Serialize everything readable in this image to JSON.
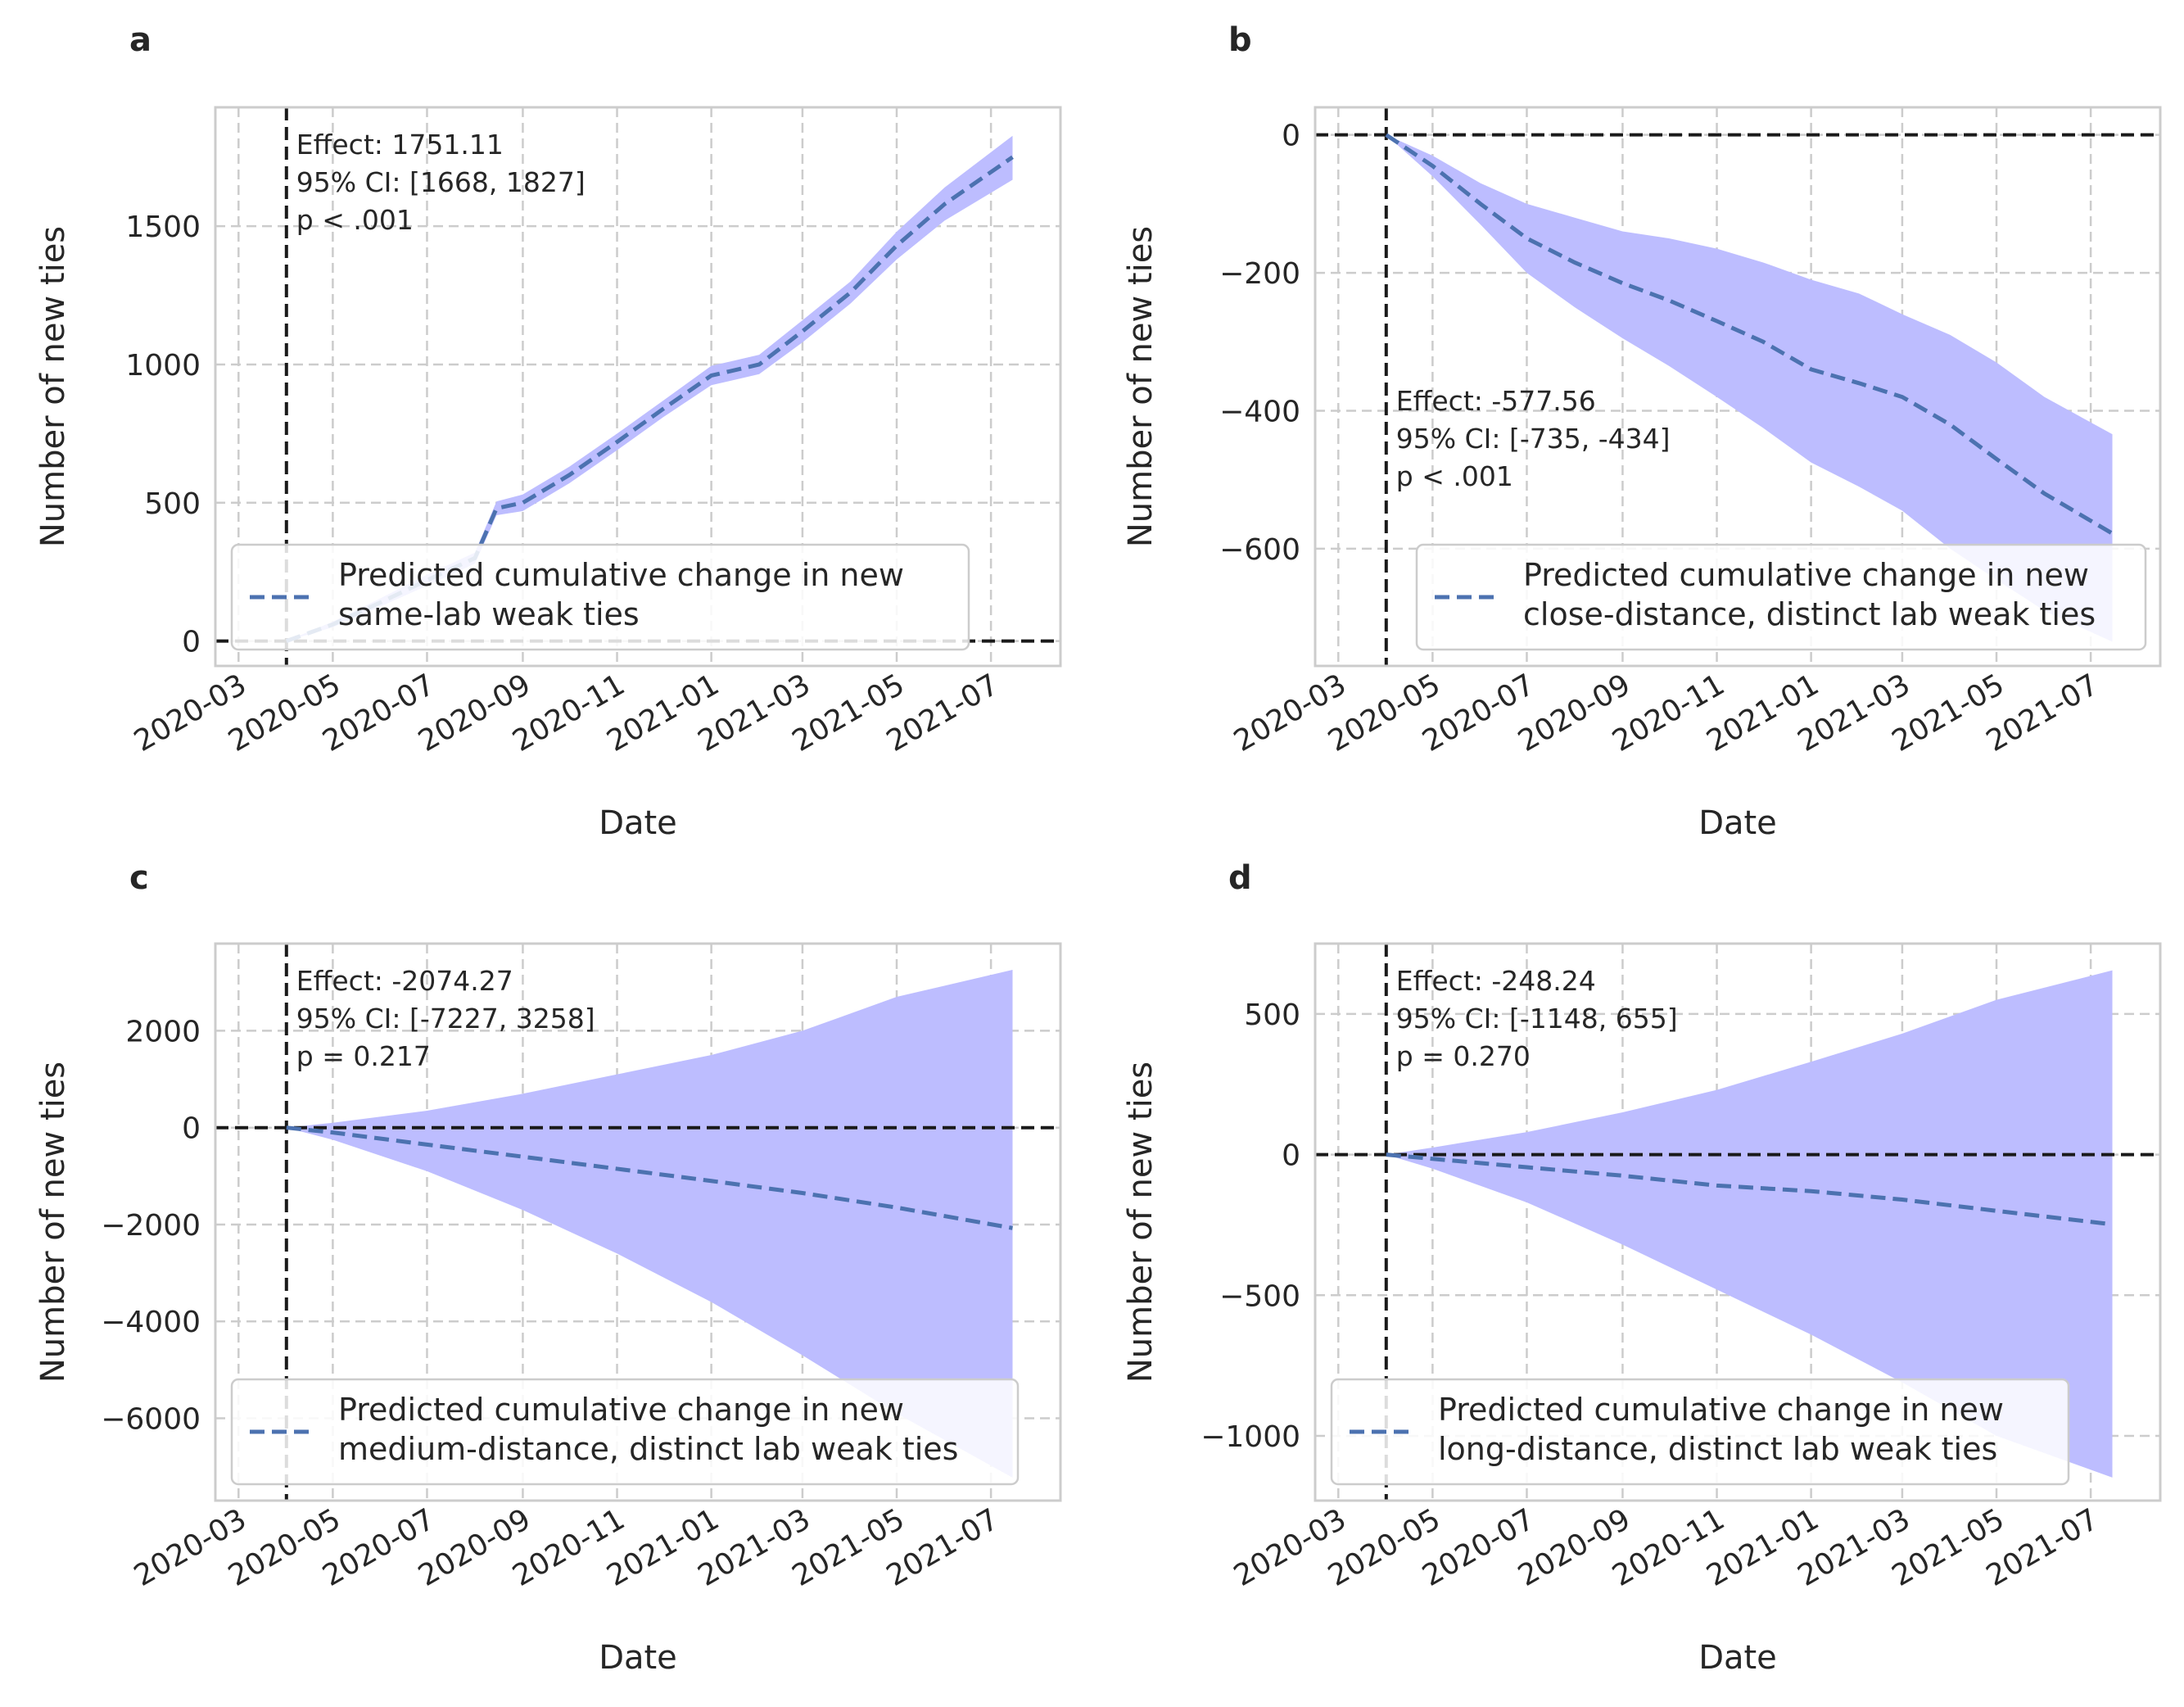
{
  "chart_data": [
    {
      "type": "line",
      "panel": "a",
      "xlabel": "Date",
      "ylabel": "Number of new ties",
      "x_ticks": [
        "2020-03",
        "2020-05",
        "2020-07",
        "2020-09",
        "2020-11",
        "2021-01",
        "2021-03",
        "2021-05",
        "2021-07"
      ],
      "y_ticks": [
        0,
        500,
        1000,
        1500
      ],
      "ylim": [
        -90,
        1930
      ],
      "intervention_date": "2020-04-01",
      "annotation": [
        "Effect: 1751.11",
        "95% CI: [1668, 1827]",
        "p < .001"
      ],
      "legend": [
        "Predicted cumulative change in new",
        "same-lab weak ties"
      ],
      "legend_position": "lower-left",
      "series": [
        {
          "name": "Predicted cumulative change",
          "style": "dashed",
          "x": [
            "2020-04-01",
            "2020-05-01",
            "2020-06-01",
            "2020-07-01",
            "2020-08-01",
            "2020-08-15",
            "2020-09-01",
            "2020-10-01",
            "2020-11-01",
            "2020-12-01",
            "2021-01-01",
            "2021-02-01",
            "2021-03-01",
            "2021-04-01",
            "2021-05-01",
            "2021-06-01",
            "2021-07-15"
          ],
          "values": [
            0,
            60,
            140,
            220,
            300,
            480,
            500,
            600,
            720,
            840,
            960,
            1000,
            1120,
            1260,
            1430,
            1580,
            1750
          ],
          "ci_lower": [
            0,
            50,
            125,
            200,
            280,
            455,
            470,
            570,
            690,
            810,
            925,
            965,
            1080,
            1220,
            1380,
            1520,
            1668
          ],
          "ci_upper": [
            0,
            70,
            155,
            240,
            320,
            505,
            530,
            630,
            750,
            870,
            995,
            1035,
            1160,
            1300,
            1480,
            1640,
            1827
          ]
        }
      ],
      "colors": {
        "line": "#4c72b0",
        "band": "#bdbdff",
        "ref": "#1a1a1a"
      }
    },
    {
      "type": "line",
      "panel": "b",
      "xlabel": "Date",
      "ylabel": "Number of new ties",
      "x_ticks": [
        "2020-03",
        "2020-05",
        "2020-07",
        "2020-09",
        "2020-11",
        "2021-01",
        "2021-03",
        "2021-05",
        "2021-07"
      ],
      "y_ticks": [
        0,
        -200,
        -400,
        -600
      ],
      "ylim": [
        -770,
        40
      ],
      "intervention_date": "2020-04-01",
      "annotation": [
        "Effect: -577.56",
        "95% CI: [-735, -434]",
        "p < .001"
      ],
      "legend": [
        "Predicted cumulative change in new",
        "close-distance, distinct lab weak ties"
      ],
      "legend_position": "lower-right",
      "series": [
        {
          "name": "Predicted cumulative change",
          "style": "dashed",
          "x": [
            "2020-04-01",
            "2020-05-01",
            "2020-06-01",
            "2020-07-01",
            "2020-08-01",
            "2020-09-01",
            "2020-10-01",
            "2020-11-01",
            "2020-12-01",
            "2021-01-01",
            "2021-02-01",
            "2021-03-01",
            "2021-04-01",
            "2021-05-01",
            "2021-06-01",
            "2021-07-15"
          ],
          "values": [
            0,
            -45,
            -100,
            -150,
            -185,
            -215,
            -240,
            -270,
            -300,
            -340,
            -360,
            -380,
            -420,
            -470,
            -520,
            -578
          ],
          "ci_lower": [
            0,
            -60,
            -130,
            -200,
            -250,
            -295,
            -335,
            -380,
            -425,
            -475,
            -510,
            -545,
            -600,
            -645,
            -690,
            -735
          ],
          "ci_upper": [
            0,
            -30,
            -70,
            -100,
            -120,
            -140,
            -150,
            -165,
            -185,
            -210,
            -230,
            -260,
            -290,
            -330,
            -380,
            -434
          ]
        }
      ],
      "colors": {
        "line": "#4c72b0",
        "band": "#bdbdff",
        "ref": "#1a1a1a"
      }
    },
    {
      "type": "line",
      "panel": "c",
      "xlabel": "Date",
      "ylabel": "Number of new ties",
      "x_ticks": [
        "2020-03",
        "2020-05",
        "2020-07",
        "2020-09",
        "2020-11",
        "2021-01",
        "2021-03",
        "2021-05",
        "2021-07"
      ],
      "y_ticks": [
        2000,
        0,
        -2000,
        -4000,
        -6000
      ],
      "ylim": [
        -7700,
        3800
      ],
      "intervention_date": "2020-04-01",
      "annotation": [
        "Effect: -2074.27",
        "95% CI: [-7227, 3258]",
        "p = 0.217"
      ],
      "legend": [
        "Predicted cumulative change in new",
        "medium-distance, distinct lab weak ties"
      ],
      "legend_position": "lower-left",
      "series": [
        {
          "name": "Predicted cumulative change",
          "style": "dashed",
          "x": [
            "2020-04-01",
            "2020-05-01",
            "2020-07-01",
            "2020-09-01",
            "2020-11-01",
            "2021-01-01",
            "2021-03-01",
            "2021-05-01",
            "2021-07-15"
          ],
          "values": [
            0,
            -100,
            -350,
            -600,
            -850,
            -1100,
            -1350,
            -1650,
            -2074
          ],
          "ci_lower": [
            0,
            -250,
            -900,
            -1700,
            -2600,
            -3600,
            -4700,
            -5900,
            -7227
          ],
          "ci_upper": [
            0,
            100,
            350,
            700,
            1100,
            1500,
            2000,
            2700,
            3258
          ]
        }
      ],
      "colors": {
        "line": "#4c72b0",
        "band": "#bdbdff",
        "ref": "#1a1a1a"
      }
    },
    {
      "type": "line",
      "panel": "d",
      "xlabel": "Date",
      "ylabel": "Number of new ties",
      "x_ticks": [
        "2020-03",
        "2020-05",
        "2020-07",
        "2020-09",
        "2020-11",
        "2021-01",
        "2021-03",
        "2021-05",
        "2021-07"
      ],
      "y_ticks": [
        500,
        0,
        -500,
        -1000
      ],
      "ylim": [
        -1230,
        750
      ],
      "intervention_date": "2020-04-01",
      "annotation": [
        "Effect: -248.24",
        "95% CI: [-1148, 655]",
        "p = 0.270"
      ],
      "legend": [
        "Predicted cumulative change in new",
        "long-distance, distinct lab weak ties"
      ],
      "legend_position": "lower-left",
      "series": [
        {
          "name": "Predicted cumulative change",
          "style": "dashed",
          "x": [
            "2020-04-01",
            "2020-05-01",
            "2020-07-01",
            "2020-09-01",
            "2020-11-01",
            "2021-01-01",
            "2021-03-01",
            "2021-05-01",
            "2021-07-15"
          ],
          "values": [
            0,
            -15,
            -45,
            -75,
            -110,
            -130,
            -160,
            -200,
            -248
          ],
          "ci_lower": [
            0,
            -50,
            -170,
            -320,
            -480,
            -640,
            -810,
            -1000,
            -1148
          ],
          "ci_upper": [
            0,
            25,
            80,
            150,
            230,
            330,
            430,
            550,
            655
          ]
        }
      ],
      "colors": {
        "line": "#4c72b0",
        "band": "#bdbdff",
        "ref": "#1a1a1a"
      }
    }
  ]
}
